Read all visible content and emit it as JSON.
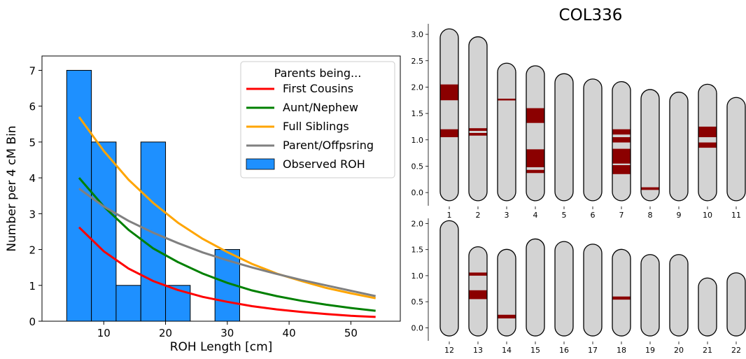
{
  "chart_data": [
    {
      "type": "bar",
      "xlabel": "ROH Length [cm]",
      "ylabel": "Number per 4 cM Bin",
      "xlim": [
        0,
        58
      ],
      "ylim": [
        0,
        7.4
      ],
      "xticks": [
        10,
        20,
        30,
        40,
        50
      ],
      "yticks": [
        0,
        1,
        2,
        3,
        4,
        5,
        6,
        7
      ],
      "bins": [
        {
          "x0": 4,
          "x1": 8,
          "value": 7
        },
        {
          "x0": 8,
          "x1": 12,
          "value": 5
        },
        {
          "x0": 12,
          "x1": 16,
          "value": 1
        },
        {
          "x0": 16,
          "x1": 20,
          "value": 5
        },
        {
          "x0": 20,
          "x1": 24,
          "value": 1
        },
        {
          "x0": 28,
          "x1": 32,
          "value": 2
        }
      ],
      "bar_color": "#1E90FF",
      "legend": {
        "title": "Parents being...",
        "position": "top-right"
      },
      "series": [
        {
          "name": "First Cousins",
          "type": "line",
          "color": "#FF0000",
          "x": [
            6,
            10,
            14,
            18,
            22,
            26,
            30,
            34,
            38,
            42,
            46,
            50,
            54
          ],
          "values": [
            2.62,
            1.95,
            1.47,
            1.12,
            0.87,
            0.68,
            0.54,
            0.42,
            0.33,
            0.26,
            0.2,
            0.15,
            0.12
          ]
        },
        {
          "name": "Aunt/Nephew",
          "type": "line",
          "color": "#008000",
          "x": [
            6,
            10,
            14,
            18,
            22,
            26,
            30,
            34,
            38,
            42,
            46,
            50,
            54
          ],
          "values": [
            4.0,
            3.2,
            2.55,
            2.03,
            1.65,
            1.33,
            1.07,
            0.86,
            0.7,
            0.57,
            0.46,
            0.37,
            0.29
          ]
        },
        {
          "name": "Full Siblings",
          "type": "line",
          "color": "#FFA500",
          "x": [
            6,
            10,
            14,
            18,
            22,
            26,
            30,
            34,
            38,
            42,
            46,
            50,
            54
          ],
          "values": [
            5.7,
            4.75,
            3.95,
            3.3,
            2.75,
            2.3,
            1.93,
            1.6,
            1.33,
            1.12,
            0.93,
            0.78,
            0.64
          ]
        },
        {
          "name": "Parent/Offpsring",
          "type": "line",
          "color": "#808080",
          "x": [
            6,
            10,
            14,
            18,
            22,
            26,
            30,
            34,
            38,
            42,
            46,
            50,
            54
          ],
          "values": [
            3.7,
            3.2,
            2.8,
            2.47,
            2.18,
            1.92,
            1.7,
            1.5,
            1.32,
            1.15,
            1.0,
            0.85,
            0.7
          ]
        }
      ],
      "bar_series_name": "Observed ROH"
    },
    {
      "type": "karyotype",
      "title": "COL336",
      "chromosome_fill": "#D3D3D3",
      "roh_color": "#8B0000",
      "rows": [
        {
          "ylim": [
            -0.25,
            3.2
          ],
          "yticks": [
            "0.0",
            "0.5",
            "1.0",
            "1.5",
            "2.0",
            "2.5",
            "3.0"
          ],
          "chromosomes": [
            {
              "label": "1",
              "length": 3.0,
              "roh": [
                [
                  1.75,
                  2.05
                ],
                [
                  1.05,
                  1.2
                ]
              ]
            },
            {
              "label": "2",
              "length": 2.85,
              "roh": [
                [
                  1.17,
                  1.22
                ],
                [
                  1.08,
                  1.13
                ]
              ]
            },
            {
              "label": "3",
              "length": 2.35,
              "roh": [
                [
                  1.75,
                  1.78
                ]
              ]
            },
            {
              "label": "4",
              "length": 2.3,
              "roh": [
                [
                  1.32,
                  1.6
                ],
                [
                  0.48,
                  0.82
                ],
                [
                  0.37,
                  0.43
                ]
              ]
            },
            {
              "label": "5",
              "length": 2.15,
              "roh": []
            },
            {
              "label": "6",
              "length": 2.05,
              "roh": []
            },
            {
              "label": "7",
              "length": 2.0,
              "roh": [
                [
                  1.1,
                  1.2
                ],
                [
                  0.95,
                  1.05
                ],
                [
                  0.55,
                  0.83
                ],
                [
                  0.35,
                  0.52
                ]
              ]
            },
            {
              "label": "8",
              "length": 1.85,
              "roh": [
                [
                  0.05,
                  0.1
                ]
              ]
            },
            {
              "label": "9",
              "length": 1.8,
              "roh": []
            },
            {
              "label": "10",
              "length": 1.95,
              "roh": [
                [
                  1.05,
                  1.25
                ],
                [
                  0.85,
                  0.95
                ]
              ]
            },
            {
              "label": "11",
              "length": 1.7,
              "roh": []
            }
          ]
        },
        {
          "ylim": [
            -0.25,
            2.1
          ],
          "yticks": [
            "0.0",
            "0.5",
            "1.0",
            "1.5",
            "2.0"
          ],
          "chromosomes": [
            {
              "label": "12",
              "length": 1.95,
              "roh": []
            },
            {
              "label": "13",
              "length": 1.45,
              "roh": [
                [
                  1.0,
                  1.06
                ],
                [
                  0.55,
                  0.72
                ]
              ]
            },
            {
              "label": "14",
              "length": 1.4,
              "roh": [
                [
                  0.18,
                  0.25
                ]
              ]
            },
            {
              "label": "15",
              "length": 1.6,
              "roh": []
            },
            {
              "label": "16",
              "length": 1.55,
              "roh": []
            },
            {
              "label": "17",
              "length": 1.5,
              "roh": []
            },
            {
              "label": "18",
              "length": 1.4,
              "roh": [
                [
                  0.54,
                  0.6
                ]
              ]
            },
            {
              "label": "19",
              "length": 1.3,
              "roh": []
            },
            {
              "label": "20",
              "length": 1.3,
              "roh": []
            },
            {
              "label": "21",
              "length": 0.85,
              "roh": []
            },
            {
              "label": "22",
              "length": 0.95,
              "roh": []
            }
          ]
        }
      ]
    }
  ]
}
